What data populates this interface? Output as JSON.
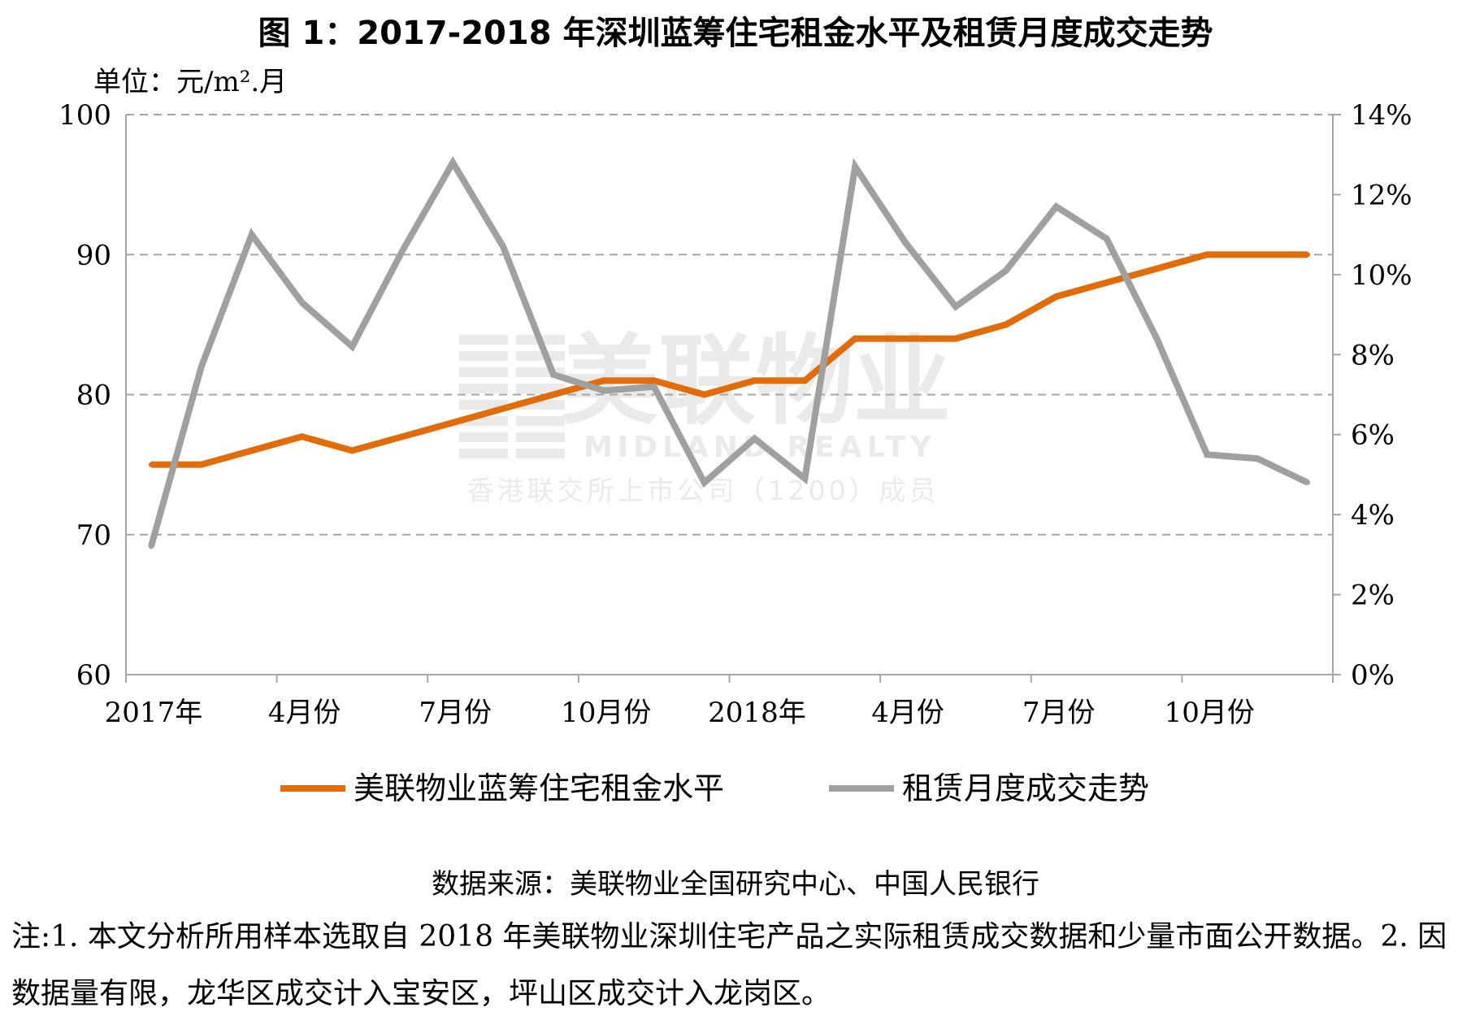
{
  "chart_data": {
    "type": "line",
    "title": "图 1：2017-2018 年深圳蓝筹住宅租金水平及租赁月度成交走势",
    "unit_label": "单位：元/m².月",
    "x_categories": [
      "2017-01",
      "2017-02",
      "2017-03",
      "2017-04",
      "2017-05",
      "2017-06",
      "2017-07",
      "2017-08",
      "2017-09",
      "2017-10",
      "2017-11",
      "2017-12",
      "2018-01",
      "2018-02",
      "2018-03",
      "2018-04",
      "2018-05",
      "2018-06",
      "2018-07",
      "2018-08",
      "2018-09",
      "2018-10",
      "2018-11",
      "2018-12"
    ],
    "x_tick_labels": [
      "2017年",
      "",
      "",
      "4月份",
      "",
      "",
      "7月份",
      "",
      "",
      "10月份",
      "",
      "",
      "2018年",
      "",
      "",
      "4月份",
      "",
      "",
      "7月份",
      "",
      "",
      "10月份",
      "",
      ""
    ],
    "y_left": {
      "ticks": [
        "60",
        "70",
        "80",
        "90",
        "100"
      ],
      "range": [
        60,
        100
      ]
    },
    "y_right": {
      "ticks": [
        "0%",
        "2%",
        "4%",
        "6%",
        "8%",
        "10%",
        "12%",
        "14%"
      ],
      "range": [
        0,
        14
      ]
    },
    "grid": "horizontal-dashed",
    "legend_position": "bottom",
    "series": [
      {
        "name": "美联物业蓝筹住宅租金水平",
        "axis": "left",
        "color": "#E36C0A",
        "values": [
          75,
          75,
          76,
          77,
          76,
          77,
          78,
          79,
          80,
          81,
          81,
          80,
          81,
          81,
          84,
          84,
          84,
          85,
          87,
          88,
          89,
          90,
          90,
          90
        ]
      },
      {
        "name": "租赁月度成交走势",
        "axis": "right",
        "color": "#A0A0A0",
        "values": [
          3.2,
          7.7,
          11.0,
          9.3,
          8.2,
          10.6,
          12.8,
          10.7,
          7.5,
          7.1,
          7.2,
          4.8,
          5.9,
          4.9,
          12.7,
          10.8,
          9.2,
          10.1,
          11.7,
          10.9,
          8.4,
          5.5,
          5.4,
          4.8
        ]
      }
    ]
  },
  "watermark": {
    "cn": "美联物业",
    "en": "MIDLAND REALTY",
    "sub": "香港联交所上市公司（1200）成员"
  },
  "source": "数据来源：美联物业全国研究中心、中国人民银行",
  "note": "注:1. 本文分析所用样本选取自 2018 年美联物业深圳住宅产品之实际租赁成交数据和少量市面公开数据。2. 因数据量有限，龙华区成交计入宝安区，坪山区成交计入龙岗区。"
}
